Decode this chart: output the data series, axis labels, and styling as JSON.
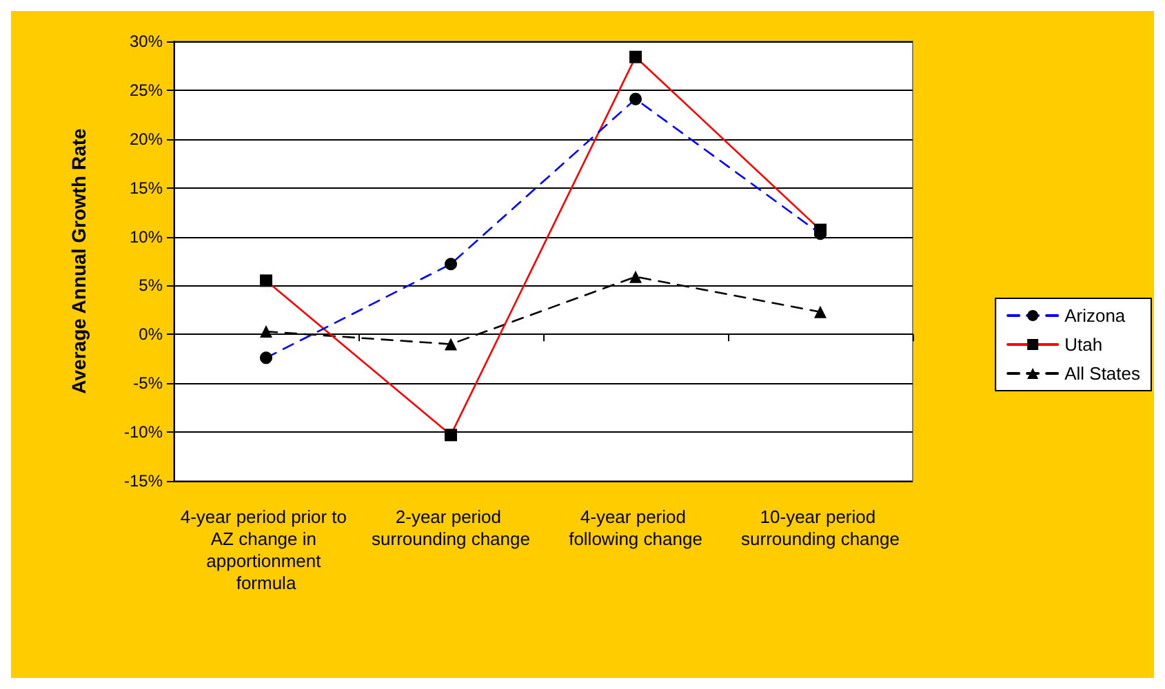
{
  "chart_data": {
    "type": "line",
    "ylabel": "Average Annual Growth Rate",
    "categories": [
      "4-year period prior to AZ change in apportionment formula",
      "2-year period surrounding change",
      "4-year period following change",
      "10-year period surrounding change"
    ],
    "series": [
      {
        "name": "Arizona",
        "color": "#0000ff",
        "marker": "circle",
        "line_style": "dashed",
        "values": [
          -2.4,
          7.2,
          24.1,
          10.3
        ]
      },
      {
        "name": "Utah",
        "color": "#ff0000",
        "marker": "square",
        "line_style": "solid",
        "values": [
          5.5,
          -10.3,
          28.4,
          10.7
        ]
      },
      {
        "name": "All States",
        "color": "#000000",
        "marker": "triangle",
        "line_style": "dashed",
        "values": [
          0.3,
          -1.0,
          5.9,
          2.3
        ]
      }
    ],
    "ylim": [
      -15,
      30
    ],
    "yticks": [
      {
        "value": -15,
        "label": "-15%"
      },
      {
        "value": -10,
        "label": "-10%"
      },
      {
        "value": -5,
        "label": "-5%"
      },
      {
        "value": 0,
        "label": "0%"
      },
      {
        "value": 5,
        "label": "5%"
      },
      {
        "value": 10,
        "label": "10%"
      },
      {
        "value": 15,
        "label": "15%"
      },
      {
        "value": 20,
        "label": "20%"
      },
      {
        "value": 25,
        "label": "25%"
      },
      {
        "value": 30,
        "label": "30%"
      }
    ],
    "grid": "y",
    "legend": "right"
  }
}
